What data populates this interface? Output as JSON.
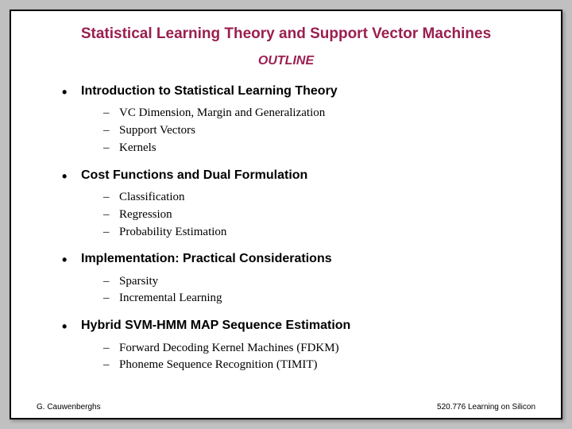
{
  "title": "Statistical Learning Theory and Support Vector Machines",
  "subtitle": "OUTLINE",
  "sections": [
    {
      "heading": "Introduction to Statistical Learning Theory",
      "items": [
        "VC Dimension, Margin and Generalization",
        "Support Vectors",
        "Kernels"
      ]
    },
    {
      "heading": "Cost Functions and Dual Formulation",
      "items": [
        "Classification",
        "Regression",
        "Probability Estimation"
      ]
    },
    {
      "heading": "Implementation: Practical Considerations",
      "items": [
        "Sparsity",
        "Incremental Learning"
      ]
    },
    {
      "heading": "Hybrid SVM-HMM MAP Sequence Estimation",
      "items": [
        "Forward Decoding Kernel Machines (FDKM)",
        "Phoneme Sequence Recognition (TIMIT)"
      ]
    }
  ],
  "footer": {
    "left": "G. Cauwenberghs",
    "right": "520.776 Learning on Silicon"
  },
  "colors": {
    "accent": "#9a1f4f",
    "background": "#ffffff",
    "page_bg": "#c0c0c0",
    "text": "#000000"
  }
}
